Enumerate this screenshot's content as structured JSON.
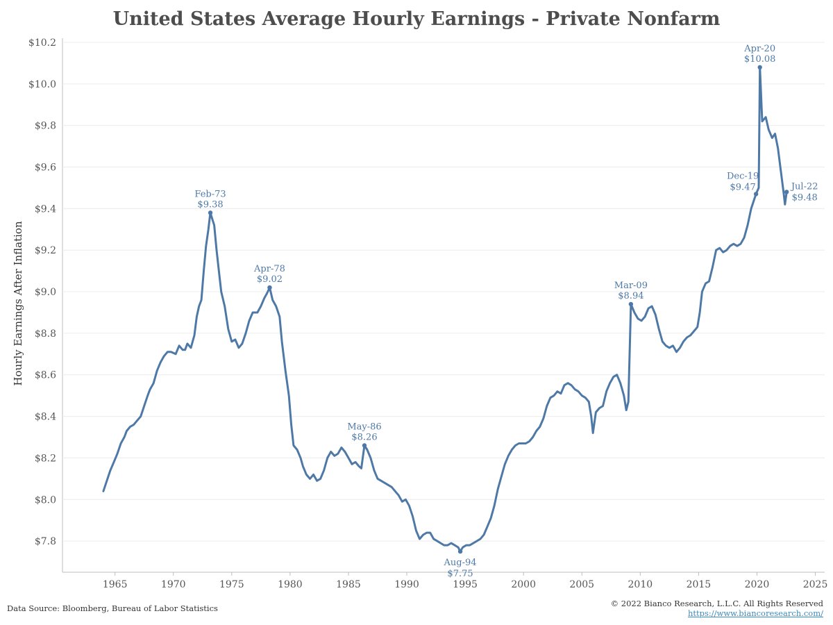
{
  "title": "United States Average Hourly Earnings  - Private Nonfarm",
  "footer": {
    "source": "Data Source: Bloomberg, Bureau of Labor Statistics",
    "copyright": "© 2022 Bianco Research, L.L.C. All Rights Reserved",
    "website": "https://www.biancoresearch.com/"
  },
  "colors": {
    "line": "#4e79a7",
    "grid": "#ececec",
    "title": "#4d4d4d"
  },
  "chart_data": {
    "type": "line",
    "title": "United States Average Hourly Earnings  - Private Nonfarm",
    "xlabel": "",
    "ylabel": "Hourly Earnings After Inflation",
    "xlim": [
      1960.5,
      2025.8
    ],
    "ylim": [
      7.65,
      10.22
    ],
    "x_ticks": [
      1965,
      1970,
      1975,
      1980,
      1985,
      1990,
      1995,
      2000,
      2005,
      2010,
      2015,
      2020,
      2025
    ],
    "x_tick_labels": [
      "1965",
      "1970",
      "1975",
      "1980",
      "1985",
      "1990",
      "1995",
      "2000",
      "2005",
      "2010",
      "2015",
      "2020",
      "2025"
    ],
    "y_ticks": [
      7.8,
      8.0,
      8.2,
      8.4,
      8.6,
      8.8,
      9.0,
      9.2,
      9.4,
      9.6,
      9.8,
      10.0,
      10.2
    ],
    "y_tick_labels": [
      "$7.8",
      "$8.0",
      "$8.2",
      "$8.4",
      "$8.6",
      "$8.8",
      "$9.0",
      "$9.2",
      "$9.4",
      "$9.6",
      "$9.8",
      "$10.0",
      "$10.2"
    ],
    "grid": "horizontal",
    "series": [
      {
        "color": "#4e79a7",
        "points": [
          [
            1964.0,
            8.04
          ],
          [
            1964.3,
            8.09
          ],
          [
            1964.6,
            8.14
          ],
          [
            1964.9,
            8.18
          ],
          [
            1965.2,
            8.22
          ],
          [
            1965.5,
            8.27
          ],
          [
            1965.8,
            8.3
          ],
          [
            1966.0,
            8.33
          ],
          [
            1966.3,
            8.35
          ],
          [
            1966.6,
            8.36
          ],
          [
            1966.9,
            8.38
          ],
          [
            1967.2,
            8.4
          ],
          [
            1967.5,
            8.45
          ],
          [
            1967.8,
            8.5
          ],
          [
            1968.0,
            8.53
          ],
          [
            1968.3,
            8.56
          ],
          [
            1968.6,
            8.62
          ],
          [
            1968.9,
            8.66
          ],
          [
            1969.2,
            8.69
          ],
          [
            1969.5,
            8.71
          ],
          [
            1969.8,
            8.71
          ],
          [
            1970.2,
            8.7
          ],
          [
            1970.5,
            8.74
          ],
          [
            1970.8,
            8.72
          ],
          [
            1971.0,
            8.72
          ],
          [
            1971.2,
            8.75
          ],
          [
            1971.5,
            8.73
          ],
          [
            1971.8,
            8.79
          ],
          [
            1972.0,
            8.88
          ],
          [
            1972.2,
            8.93
          ],
          [
            1972.4,
            8.96
          ],
          [
            1972.6,
            9.1
          ],
          [
            1972.8,
            9.22
          ],
          [
            1973.0,
            9.3
          ],
          [
            1973.17,
            9.38
          ],
          [
            1973.5,
            9.32
          ],
          [
            1973.7,
            9.2
          ],
          [
            1973.9,
            9.1
          ],
          [
            1974.1,
            9.0
          ],
          [
            1974.4,
            8.93
          ],
          [
            1974.7,
            8.82
          ],
          [
            1975.0,
            8.76
          ],
          [
            1975.3,
            8.77
          ],
          [
            1975.6,
            8.73
          ],
          [
            1975.9,
            8.75
          ],
          [
            1976.2,
            8.8
          ],
          [
            1976.5,
            8.86
          ],
          [
            1976.8,
            8.9
          ],
          [
            1977.2,
            8.9
          ],
          [
            1977.5,
            8.93
          ],
          [
            1977.8,
            8.97
          ],
          [
            1978.0,
            8.99
          ],
          [
            1978.25,
            9.02
          ],
          [
            1978.5,
            8.96
          ],
          [
            1978.8,
            8.93
          ],
          [
            1979.1,
            8.88
          ],
          [
            1979.3,
            8.76
          ],
          [
            1979.6,
            8.62
          ],
          [
            1979.9,
            8.5
          ],
          [
            1980.1,
            8.36
          ],
          [
            1980.3,
            8.26
          ],
          [
            1980.6,
            8.24
          ],
          [
            1980.9,
            8.2
          ],
          [
            1981.1,
            8.16
          ],
          [
            1981.4,
            8.12
          ],
          [
            1981.7,
            8.1
          ],
          [
            1982.0,
            8.12
          ],
          [
            1982.3,
            8.09
          ],
          [
            1982.6,
            8.1
          ],
          [
            1982.9,
            8.14
          ],
          [
            1983.2,
            8.2
          ],
          [
            1983.5,
            8.23
          ],
          [
            1983.8,
            8.21
          ],
          [
            1984.1,
            8.22
          ],
          [
            1984.4,
            8.25
          ],
          [
            1984.7,
            8.23
          ],
          [
            1985.0,
            8.2
          ],
          [
            1985.3,
            8.17
          ],
          [
            1985.6,
            8.18
          ],
          [
            1985.9,
            8.16
          ],
          [
            1986.1,
            8.15
          ],
          [
            1986.37,
            8.26
          ],
          [
            1986.6,
            8.24
          ],
          [
            1986.9,
            8.2
          ],
          [
            1987.2,
            8.14
          ],
          [
            1987.5,
            8.1
          ],
          [
            1987.8,
            8.09
          ],
          [
            1988.1,
            8.08
          ],
          [
            1988.4,
            8.07
          ],
          [
            1988.7,
            8.06
          ],
          [
            1989.0,
            8.04
          ],
          [
            1989.3,
            8.02
          ],
          [
            1989.6,
            7.99
          ],
          [
            1989.9,
            8.0
          ],
          [
            1990.2,
            7.97
          ],
          [
            1990.5,
            7.92
          ],
          [
            1990.8,
            7.85
          ],
          [
            1991.1,
            7.81
          ],
          [
            1991.4,
            7.83
          ],
          [
            1991.7,
            7.84
          ],
          [
            1992.0,
            7.84
          ],
          [
            1992.3,
            7.81
          ],
          [
            1992.6,
            7.8
          ],
          [
            1992.9,
            7.79
          ],
          [
            1993.2,
            7.78
          ],
          [
            1993.5,
            7.78
          ],
          [
            1993.8,
            7.79
          ],
          [
            1994.1,
            7.78
          ],
          [
            1994.4,
            7.77
          ],
          [
            1994.58,
            7.75
          ],
          [
            1994.8,
            7.77
          ],
          [
            1995.1,
            7.78
          ],
          [
            1995.4,
            7.78
          ],
          [
            1995.7,
            7.79
          ],
          [
            1996.0,
            7.8
          ],
          [
            1996.3,
            7.81
          ],
          [
            1996.6,
            7.83
          ],
          [
            1996.9,
            7.87
          ],
          [
            1997.2,
            7.91
          ],
          [
            1997.5,
            7.97
          ],
          [
            1997.8,
            8.05
          ],
          [
            1998.1,
            8.11
          ],
          [
            1998.4,
            8.17
          ],
          [
            1998.7,
            8.21
          ],
          [
            1999.0,
            8.24
          ],
          [
            1999.3,
            8.26
          ],
          [
            1999.6,
            8.27
          ],
          [
            1999.9,
            8.27
          ],
          [
            2000.2,
            8.27
          ],
          [
            2000.5,
            8.28
          ],
          [
            2000.8,
            8.3
          ],
          [
            2001.1,
            8.33
          ],
          [
            2001.4,
            8.35
          ],
          [
            2001.7,
            8.39
          ],
          [
            2002.0,
            8.45
          ],
          [
            2002.3,
            8.49
          ],
          [
            2002.6,
            8.5
          ],
          [
            2002.9,
            8.52
          ],
          [
            2003.2,
            8.51
          ],
          [
            2003.5,
            8.55
          ],
          [
            2003.8,
            8.56
          ],
          [
            2004.1,
            8.55
          ],
          [
            2004.4,
            8.53
          ],
          [
            2004.7,
            8.52
          ],
          [
            2005.0,
            8.5
          ],
          [
            2005.3,
            8.49
          ],
          [
            2005.6,
            8.47
          ],
          [
            2005.8,
            8.4
          ],
          [
            2005.95,
            8.32
          ],
          [
            2006.2,
            8.42
          ],
          [
            2006.5,
            8.44
          ],
          [
            2006.8,
            8.45
          ],
          [
            2007.1,
            8.52
          ],
          [
            2007.4,
            8.56
          ],
          [
            2007.7,
            8.59
          ],
          [
            2008.0,
            8.6
          ],
          [
            2008.3,
            8.56
          ],
          [
            2008.6,
            8.5
          ],
          [
            2008.8,
            8.43
          ],
          [
            2008.98,
            8.47
          ],
          [
            2009.2,
            8.94
          ],
          [
            2009.5,
            8.9
          ],
          [
            2009.8,
            8.87
          ],
          [
            2010.1,
            8.86
          ],
          [
            2010.4,
            8.88
          ],
          [
            2010.7,
            8.92
          ],
          [
            2011.0,
            8.93
          ],
          [
            2011.3,
            8.89
          ],
          [
            2011.6,
            8.82
          ],
          [
            2011.9,
            8.76
          ],
          [
            2012.2,
            8.74
          ],
          [
            2012.5,
            8.73
          ],
          [
            2012.8,
            8.74
          ],
          [
            2013.1,
            8.71
          ],
          [
            2013.4,
            8.73
          ],
          [
            2013.7,
            8.76
          ],
          [
            2014.0,
            8.78
          ],
          [
            2014.3,
            8.79
          ],
          [
            2014.6,
            8.81
          ],
          [
            2014.9,
            8.83
          ],
          [
            2015.1,
            8.9
          ],
          [
            2015.3,
            9.0
          ],
          [
            2015.6,
            9.04
          ],
          [
            2015.9,
            9.05
          ],
          [
            2016.2,
            9.12
          ],
          [
            2016.5,
            9.2
          ],
          [
            2016.8,
            9.21
          ],
          [
            2017.1,
            9.19
          ],
          [
            2017.4,
            9.2
          ],
          [
            2017.7,
            9.22
          ],
          [
            2018.0,
            9.23
          ],
          [
            2018.3,
            9.22
          ],
          [
            2018.6,
            9.23
          ],
          [
            2018.9,
            9.26
          ],
          [
            2019.2,
            9.32
          ],
          [
            2019.5,
            9.4
          ],
          [
            2019.8,
            9.45
          ],
          [
            2019.92,
            9.47
          ],
          [
            2020.15,
            9.5
          ],
          [
            2020.25,
            10.08
          ],
          [
            2020.45,
            9.82
          ],
          [
            2020.75,
            9.84
          ],
          [
            2021.0,
            9.78
          ],
          [
            2021.3,
            9.74
          ],
          [
            2021.55,
            9.76
          ],
          [
            2021.8,
            9.69
          ],
          [
            2022.05,
            9.58
          ],
          [
            2022.3,
            9.47
          ],
          [
            2022.4,
            9.42
          ],
          [
            2022.54,
            9.48
          ]
        ]
      }
    ],
    "annotations": [
      {
        "x": 1973.17,
        "y": 9.38,
        "date": "Feb-73",
        "value": "$9.38",
        "position": "above"
      },
      {
        "x": 1978.25,
        "y": 9.02,
        "date": "Apr-78",
        "value": "$9.02",
        "position": "above"
      },
      {
        "x": 1986.37,
        "y": 8.26,
        "date": "May-86",
        "value": "$8.26",
        "position": "above"
      },
      {
        "x": 1994.58,
        "y": 7.75,
        "date": "Aug-94",
        "value": "$7.75",
        "position": "below"
      },
      {
        "x": 2009.2,
        "y": 8.94,
        "date": "Mar-09",
        "value": "$8.94",
        "position": "above"
      },
      {
        "x": 2019.92,
        "y": 9.47,
        "date": "Dec-19",
        "value": "$9.47",
        "position": "above-left"
      },
      {
        "x": 2020.25,
        "y": 10.08,
        "date": "Apr-20",
        "value": "$10.08",
        "position": "above"
      },
      {
        "x": 2022.54,
        "y": 9.48,
        "date": "Jul-22",
        "value": "$9.48",
        "position": "right"
      }
    ]
  }
}
